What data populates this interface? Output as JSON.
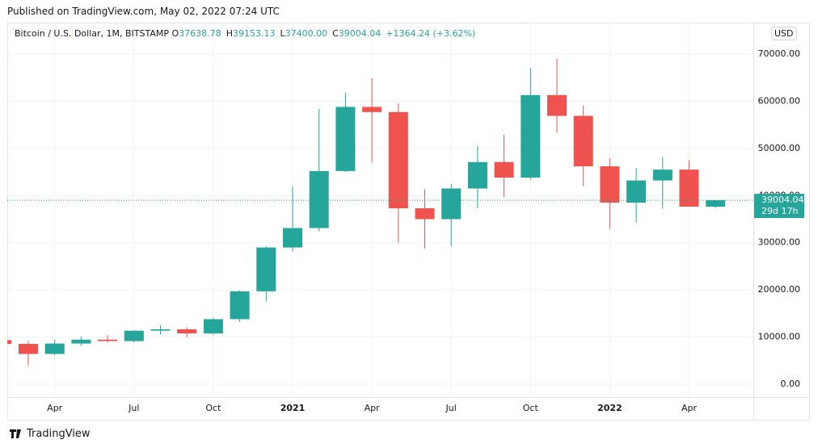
{
  "published": "Published on TradingView.com, May 02, 2022 07:24 UTC",
  "footer": "TradingView",
  "chart_data": {
    "type": "candlestick",
    "symbol": "Bitcoin / U.S. Dollar, 1M, BITSTAMP",
    "legend": [
      {
        "label": "O",
        "value": "37638.78"
      },
      {
        "label": "H",
        "value": "39153.13"
      },
      {
        "label": "L",
        "value": "37400.00"
      },
      {
        "label": "C",
        "value": "39004.04"
      }
    ],
    "change": "+1364.24 (+3.62%)",
    "currency": "USD",
    "categories": [
      null,
      null,
      "Apr",
      null,
      null,
      "Jul",
      null,
      null,
      "Oct",
      null,
      null,
      "2021",
      null,
      null,
      "Apr",
      null,
      null,
      "Jul",
      null,
      null,
      "Oct",
      null,
      null,
      "2022",
      null,
      null,
      "Apr",
      null
    ],
    "open": [
      9350,
      8550,
      6420,
      8630,
      9450,
      9140,
      11350,
      11650,
      10780,
      13790,
      19700,
      28990,
      33110,
      45200,
      58800,
      57700,
      37300,
      35000,
      41500,
      47100,
      43800,
      61300,
      56900,
      46200,
      38500,
      43200,
      45500,
      37638.78
    ],
    "high": [
      10300,
      9190,
      9460,
      10080,
      10430,
      11440,
      12470,
      12070,
      14100,
      19900,
      29300,
      41950,
      58350,
      61780,
      64900,
      59600,
      41300,
      42400,
      50500,
      52900,
      67000,
      69000,
      59100,
      47900,
      45800,
      48200,
      47500,
      39153.13
    ],
    "low": [
      8450,
      3860,
      6150,
      8120,
      8830,
      8900,
      10540,
      9880,
      10370,
      13200,
      17570,
      28130,
      32400,
      45000,
      47000,
      30000,
      28800,
      29300,
      37300,
      39600,
      43300,
      53300,
      42000,
      32900,
      34300,
      37200,
      37700,
      37400
    ],
    "close": [
      8550,
      6420,
      8630,
      9450,
      9140,
      11350,
      11650,
      10780,
      13790,
      19700,
      28990,
      33110,
      45200,
      58800,
      57700,
      37300,
      35000,
      41500,
      47100,
      43800,
      61300,
      56900,
      46200,
      38500,
      43200,
      45500,
      37638.78,
      39004.04
    ],
    "up_color": "#26a69a",
    "down_color": "#ef5350",
    "current_price": {
      "value": 39004.04,
      "countdown": "29d 17h"
    },
    "ylim": [
      -2740,
      76670
    ],
    "yticks": [
      {
        "value": 0,
        "label": "0.00"
      },
      {
        "value": 10000,
        "label": "10000.00"
      },
      {
        "value": 20000,
        "label": "20000.00"
      },
      {
        "value": 30000,
        "label": "30000.00"
      },
      {
        "value": 40000,
        "label": "40000.00"
      },
      {
        "value": 50000,
        "label": "50000.00"
      },
      {
        "value": 60000,
        "label": "60000.00"
      },
      {
        "value": 70000,
        "label": "70000.00"
      }
    ],
    "grid": true
  }
}
